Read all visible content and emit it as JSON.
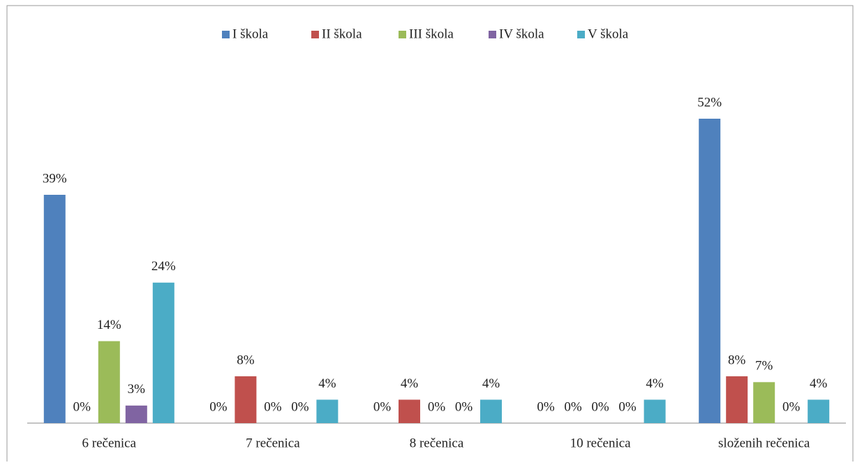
{
  "chart_data": {
    "type": "bar",
    "categories": [
      "6 rečenica",
      "7 rečenica",
      "8 rečenica",
      "10 rečenica",
      "složenih rečenica"
    ],
    "legend": "top",
    "series": [
      {
        "name": "I škola",
        "color": "#4f81bd",
        "values": [
          39,
          0,
          0,
          0,
          52
        ],
        "value_labels": [
          "39%",
          "0%",
          "0%",
          "0%",
          "52%"
        ]
      },
      {
        "name": "II škola",
        "color": "#c0504d",
        "values": [
          0,
          8,
          4,
          0,
          8
        ],
        "value_labels": [
          "0%",
          "8%",
          "4%",
          "0%",
          "8%"
        ]
      },
      {
        "name": "III škola",
        "color": "#9bbb59",
        "values": [
          14,
          0,
          0,
          0,
          7
        ],
        "value_labels": [
          "14%",
          "0%",
          "0%",
          "0%",
          "7%"
        ]
      },
      {
        "name": "IV škola",
        "color": "#8064a2",
        "values": [
          3,
          0,
          0,
          0,
          0
        ],
        "value_labels": [
          "3%",
          "0%",
          "0%",
          "0%",
          "0%"
        ]
      },
      {
        "name": "V škola",
        "color": "#4bacc6",
        "values": [
          24,
          4,
          4,
          4,
          4
        ],
        "value_labels": [
          "24%",
          "4%",
          "4%",
          "4%",
          "4%"
        ]
      }
    ]
  }
}
